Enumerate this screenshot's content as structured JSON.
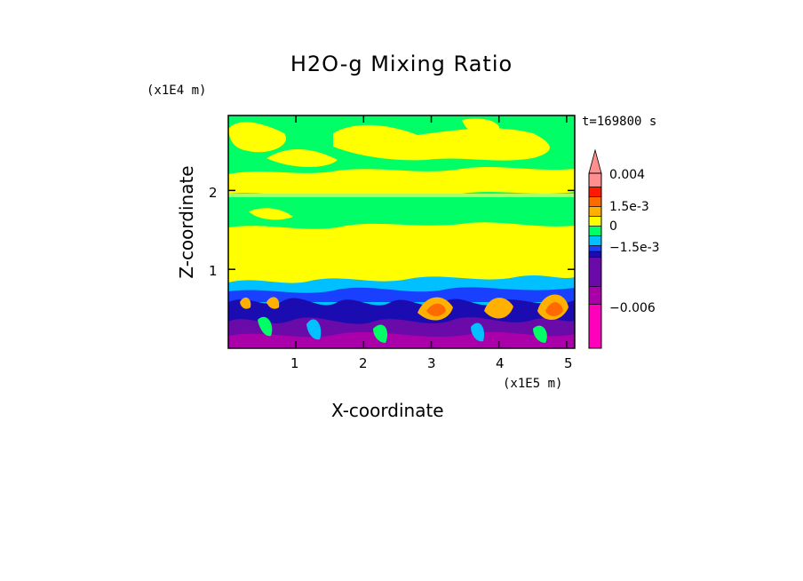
{
  "chart_data": {
    "type": "heatmap",
    "title": "H2O-g Mixing Ratio",
    "xlabel": "X-coordinate",
    "ylabel": "Z-coordinate",
    "x_unit": "(x1E5 m)",
    "y_unit": "(x1E4 m)",
    "time_label": "t=169800 s",
    "xlim": [
      0,
      5.12
    ],
    "ylim": [
      0,
      2.95
    ],
    "x_ticks": [
      "1",
      "2",
      "3",
      "4",
      "5"
    ],
    "x_tick_values": [
      1,
      2,
      3,
      4,
      5
    ],
    "y_ticks": [
      "1",
      "2"
    ],
    "y_tick_values": [
      1,
      2
    ],
    "colorbar": {
      "labels": [
        "0.004",
        "1.5e-3",
        "0",
        "−1.5e-3",
        "−0.006"
      ],
      "label_values": [
        0.004,
        0.0015,
        0,
        -0.0015,
        -0.006
      ],
      "colors": [
        "#ff00bb",
        "#aa00aa",
        "#6a0aa8",
        "#1a0cb0",
        "#1a40ff",
        "#00c0ff",
        "#00ff66",
        "#ffff00",
        "#ffb000",
        "#ff6a00",
        "#ff1a00",
        "#ff8f8f"
      ]
    },
    "bands": [
      {
        "z_min": 2.3,
        "z_max": 2.95,
        "field": "0 / slightly positive (green-yellow mix)"
      },
      {
        "z_min": 1.98,
        "z_max": 2.3,
        "field": "slightly positive (yellow)"
      },
      {
        "z_min": 1.55,
        "z_max": 1.98,
        "field": "near 0 (green)"
      },
      {
        "z_min": 0.85,
        "z_max": 1.55,
        "field": "slightly positive (yellow)"
      },
      {
        "z_min": 0.6,
        "z_max": 0.85,
        "field": "negative (cyan/blue)"
      },
      {
        "z_min": 0.0,
        "z_max": 0.6,
        "field": "strong negative with positive cores (purple/blue/orange)"
      }
    ],
    "grid": false,
    "legend": "right"
  }
}
